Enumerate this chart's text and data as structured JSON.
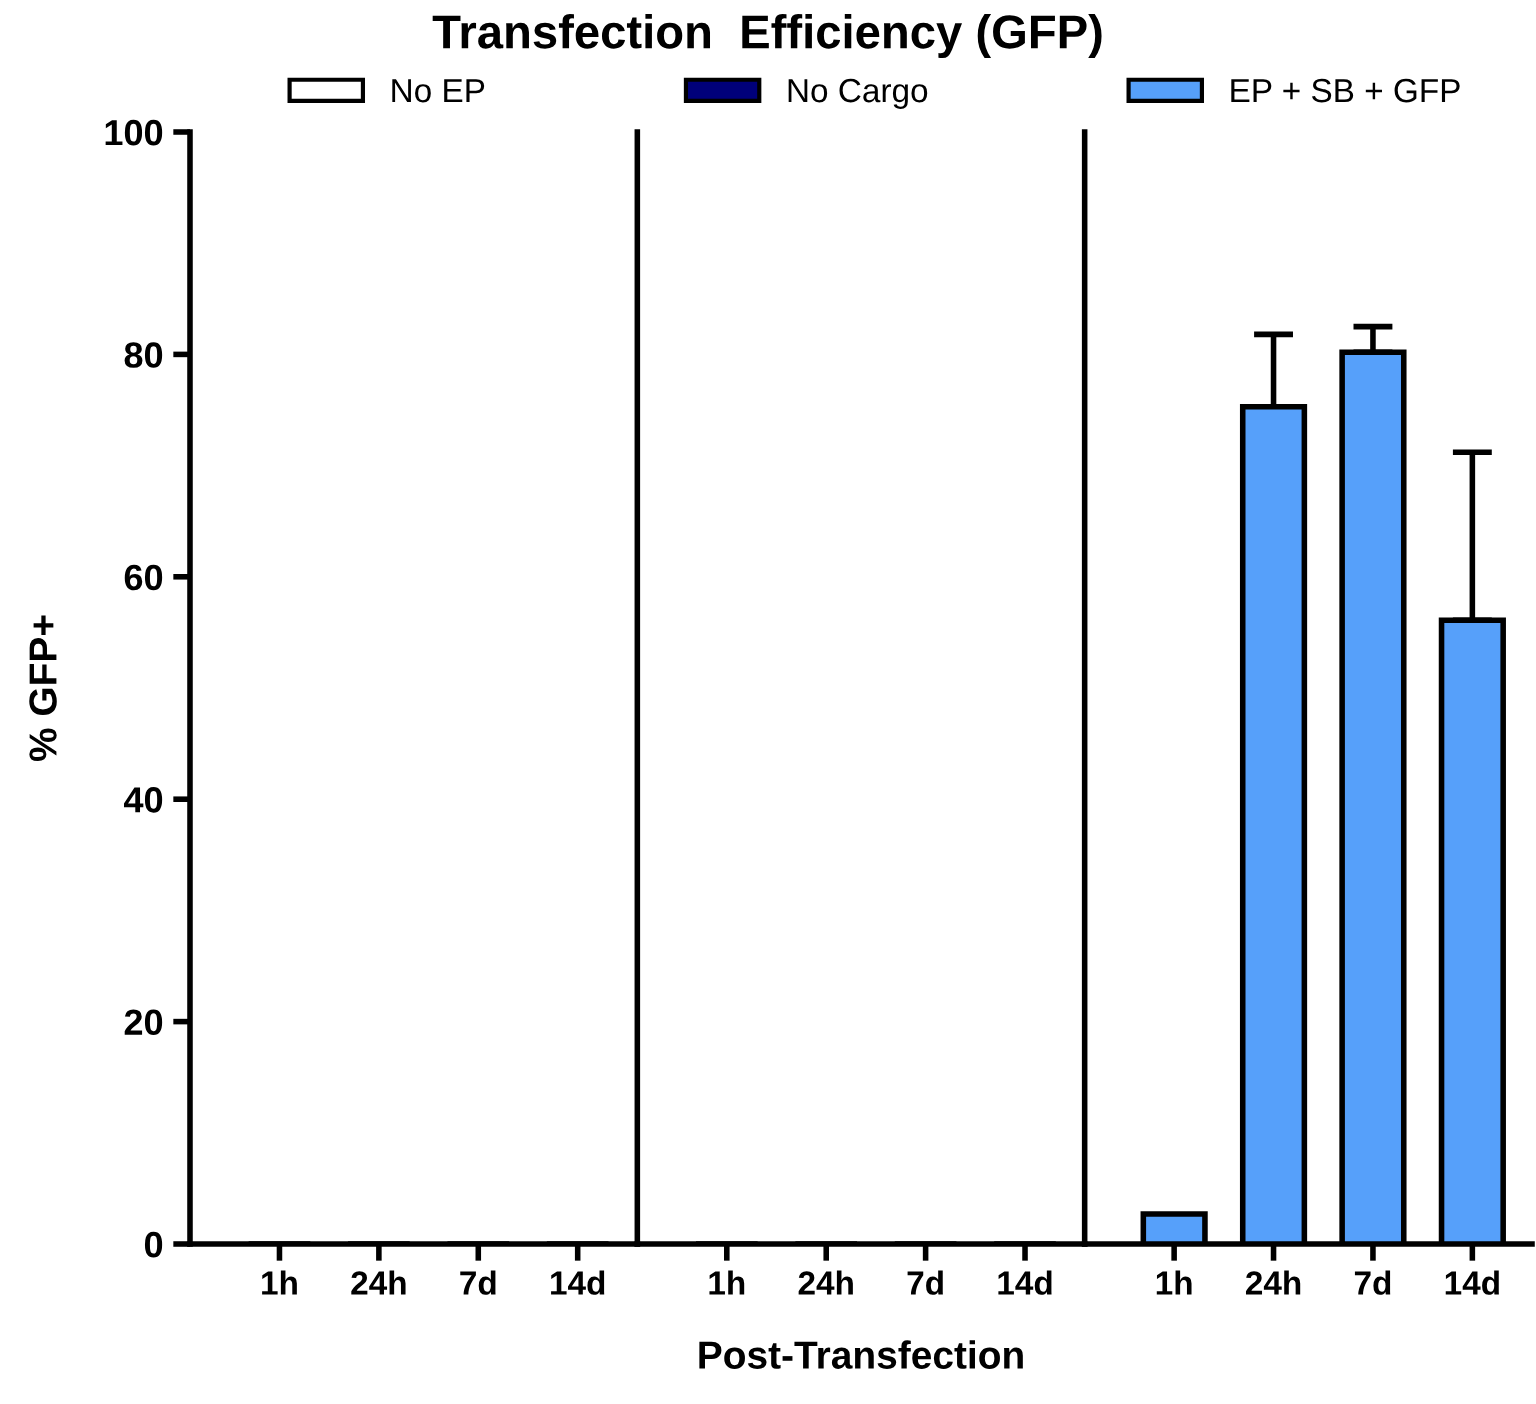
{
  "chart_data": [
    {
      "type": "bar",
      "title": "Transfection  Efficiency (GFP)",
      "ylabel": "% GFP+",
      "categories": [
        "1h",
        "24h",
        "7d",
        "14d"
      ],
      "ylim": [
        0,
        100
      ],
      "yticks": [
        0,
        20,
        40,
        60,
        80,
        100
      ],
      "legend": "top",
      "grid": false,
      "series": [
        {
          "name": "No EP",
          "color": "#ffffff",
          "values": [
            0,
            0,
            0,
            0
          ]
        }
      ]
    },
    {
      "type": "bar",
      "xlabel": "Post-Transfection",
      "categories": [
        "1h",
        "24h",
        "7d",
        "14d"
      ],
      "ylim": [
        0,
        100
      ],
      "tick_labels": "x",
      "legend": "top",
      "grid": false,
      "series": [
        {
          "name": "No Cargo",
          "color": "#00007a",
          "values": [
            0,
            0,
            0,
            0
          ]
        }
      ]
    },
    {
      "type": "bar",
      "categories": [
        "1h",
        "24h",
        "7d",
        "14d"
      ],
      "ylim": [
        0,
        100
      ],
      "tick_labels": "x",
      "legend": "top",
      "grid": false,
      "series": [
        {
          "name": "EP + SB + GFP",
          "color": "#56a0fa",
          "values": [
            2.7,
            75.3,
            80.2,
            56.1
          ],
          "errors": [
            null,
            6.5,
            2.3,
            15.1
          ]
        }
      ]
    }
  ]
}
